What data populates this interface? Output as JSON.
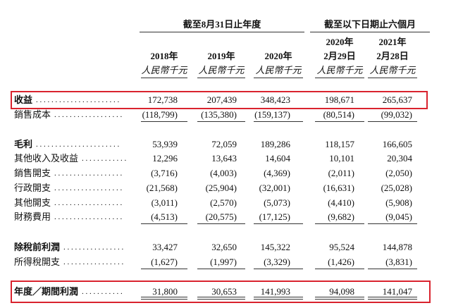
{
  "header": {
    "groups": [
      "截至8月31日止年度",
      "截至以下日期止六個月"
    ],
    "columns": [
      {
        "year": "2018年",
        "unit": "人民幣千元"
      },
      {
        "year": "2019年",
        "unit": "人民幣千元"
      },
      {
        "year": "2020年",
        "unit": "人民幣千元"
      },
      {
        "year": "2020年",
        "date": "2月29日",
        "unit": "人民幣千元"
      },
      {
        "year": "2021年",
        "date": "2月28日",
        "unit": "人民幣千元"
      }
    ]
  },
  "table": {
    "rows": [
      {
        "label": "收益",
        "leader": ". . . . . . . . . . . . . . . . . . . . . .",
        "values": [
          "172,738",
          "207,439",
          "348,423",
          "198,671",
          "265,637"
        ]
      },
      {
        "label": "銷售成本",
        "leader": ". . . . . . . . . . . . . . . . . .",
        "values": [
          "(118,799)",
          "(135,380)",
          "(159,137)",
          "(80,514)",
          "(99,032)"
        ]
      },
      {
        "label": "毛利",
        "leader": ". . . . . . . . . . . . . . . . . . . . . .",
        "values": [
          "53,939",
          "72,059",
          "189,286",
          "118,157",
          "166,605"
        ]
      },
      {
        "label": "其他收入及收益",
        "leader": ". . . . . . . . . . . .",
        "values": [
          "12,296",
          "13,643",
          "14,604",
          "10,101",
          "20,304"
        ]
      },
      {
        "label": "銷售開支",
        "leader": ". . . . . . . . . . . . . . . . . .",
        "values": [
          "(3,716)",
          "(4,003)",
          "(4,369)",
          "(2,011)",
          "(2,050)"
        ]
      },
      {
        "label": "行政開支",
        "leader": ". . . . . . . . . . . . . . . . . .",
        "values": [
          "(21,568)",
          "(25,904)",
          "(32,001)",
          "(16,631)",
          "(25,028)"
        ]
      },
      {
        "label": "其他開支",
        "leader": ". . . . . . . . . . . . . . . . . .",
        "values": [
          "(3,011)",
          "(2,570)",
          "(5,073)",
          "(4,410)",
          "(5,908)"
        ]
      },
      {
        "label": "財務費用",
        "leader": ". . . . . . . . . . . . . . . . . .",
        "values": [
          "(4,513)",
          "(20,575)",
          "(17,125)",
          "(9,682)",
          "(9,045)"
        ]
      },
      {
        "label": "除稅前利潤",
        "leader": ". . . . . . . . . . . . . . . .",
        "values": [
          "33,427",
          "32,650",
          "145,322",
          "95,524",
          "144,878"
        ]
      },
      {
        "label": "所得稅開支",
        "leader": ". . . . . . . . . . . . . . . .",
        "values": [
          "(1,627)",
          "(1,997)",
          "(3,329)",
          "(1,426)",
          "(3,831)"
        ]
      },
      {
        "label": "年度／期間利潤",
        "leader": ". . . . . . . . . . .",
        "values": [
          "31,800",
          "30,653",
          "141,993",
          "94,098",
          "141,047"
        ]
      }
    ]
  }
}
